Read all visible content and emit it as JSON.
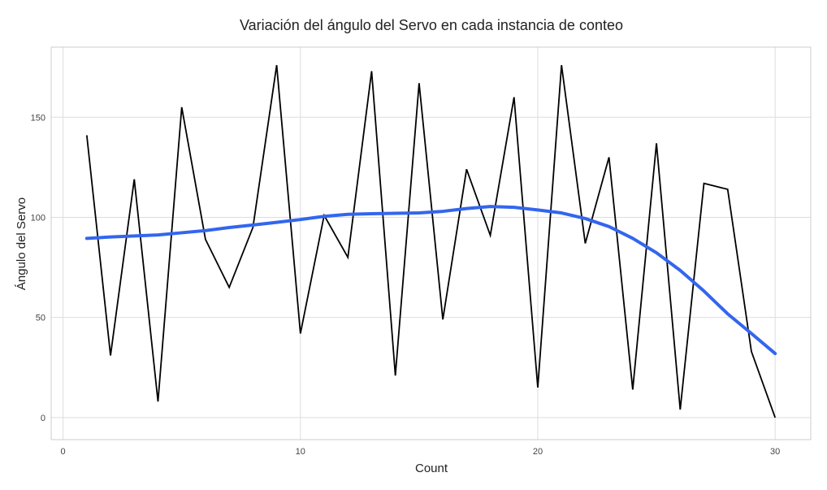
{
  "chart_data": {
    "type": "line",
    "title": "Variación del ángulo del Servo en cada instancia de conteo",
    "xlabel": "Count",
    "ylabel": "Ángulo del Servo",
    "xlim": [
      -0.5,
      31.5
    ],
    "ylim": [
      -11,
      185
    ],
    "x_ticks": [
      0,
      10,
      20,
      30
    ],
    "x_tick_labels": [
      "0",
      "10",
      "20",
      "30"
    ],
    "y_ticks": [
      0,
      50,
      100,
      150
    ],
    "y_tick_labels": [
      "0",
      "50",
      "100",
      "150"
    ],
    "grid": true,
    "legend": "none",
    "series": [
      {
        "kind": "raw",
        "color": "#000000",
        "x": [
          1,
          2,
          3,
          4,
          5,
          6,
          7,
          8,
          9,
          10,
          11,
          12,
          13,
          14,
          15,
          16,
          17,
          18,
          19,
          20,
          21,
          22,
          23,
          24,
          25,
          26,
          27,
          28,
          29,
          30
        ],
        "values": [
          141,
          31,
          119,
          8,
          155,
          89,
          65,
          95,
          176,
          42,
          101,
          80,
          173,
          21,
          167,
          49,
          124,
          91,
          160,
          15,
          176,
          87,
          130,
          14,
          137,
          4,
          117,
          114,
          33,
          0
        ]
      },
      {
        "kind": "smoothed",
        "color": "#3366ee",
        "x": [
          1,
          2,
          3,
          4,
          5,
          6,
          7,
          8,
          9,
          10,
          11,
          12,
          13,
          14,
          15,
          16,
          17,
          18,
          19,
          20,
          21,
          22,
          23,
          24,
          25,
          26,
          27,
          28,
          29,
          30
        ],
        "values": [
          89.5,
          90.2,
          90.7,
          91.2,
          92.3,
          93.4,
          94.9,
          96.2,
          97.5,
          98.9,
          100.5,
          101.5,
          101.8,
          102.0,
          102.2,
          103.0,
          104.4,
          105.4,
          105.0,
          103.7,
          102.2,
          99.4,
          95.4,
          89.5,
          82.3,
          73.5,
          63.2,
          51.8,
          42.0,
          32.0
        ]
      }
    ]
  }
}
